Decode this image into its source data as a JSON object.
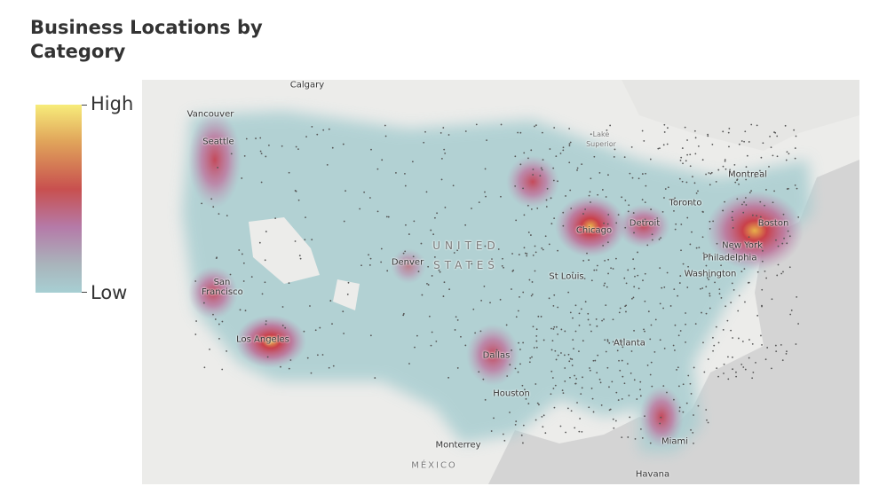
{
  "title": "Business Locations by Category",
  "legend": {
    "high": "High",
    "low": "Low"
  },
  "map_labels": [
    "Calgary",
    "Vancouver",
    "Seattle",
    "San Francisco",
    "Los Angeles",
    "Denver",
    "UNITED STATES",
    "Dallas",
    "Houston",
    "Monterrey",
    "MÉXICO",
    "Lake Superior",
    "Chicago",
    "Detroit",
    "St Louis",
    "Atlanta",
    "Miami",
    "Havana",
    "Toronto",
    "Montreal",
    "Boston",
    "New York",
    "Philadelphia",
    "Washington"
  ]
}
